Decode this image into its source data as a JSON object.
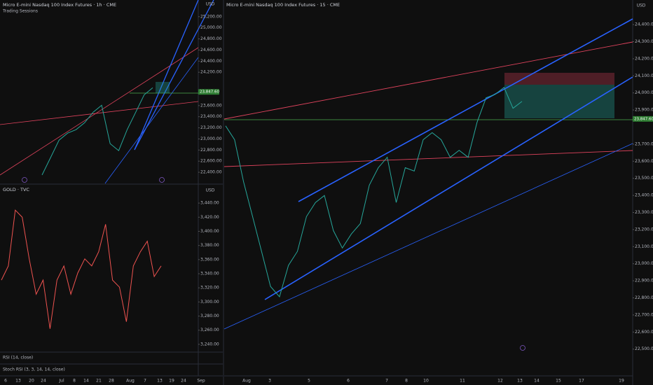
{
  "chart_data": [
    {
      "type": "line",
      "title": "Micro E-mini Nasdaq 100 Index Futures · 1h · CME",
      "subtitle": "Trading Sessions",
      "currency": "USD",
      "color": "#26a69a",
      "grid": false,
      "values": [
        22351,
        22665,
        22979,
        23104,
        23167,
        23292,
        23481,
        23606,
        22916,
        22790,
        23167,
        23481,
        23794,
        23920
      ],
      "ylim": [
        22200,
        25500
      ],
      "yticks": [
        {
          "value": 22400,
          "label": "22,400.00"
        },
        {
          "value": 22600,
          "label": "22,600.00"
        },
        {
          "value": 22800,
          "label": "22,800.00"
        },
        {
          "value": 23000,
          "label": "23,000.00"
        },
        {
          "value": 23200,
          "label": "23,200.00"
        },
        {
          "value": 23400,
          "label": "23,400.00"
        },
        {
          "value": 23600,
          "label": "23,600.00"
        },
        {
          "value": 24200,
          "label": "24,200.00"
        },
        {
          "value": 24400,
          "label": "24,400.00"
        },
        {
          "value": 24600,
          "label": "24,600.00"
        },
        {
          "value": 24800,
          "label": "24,800.00"
        },
        {
          "value": 25000,
          "label": "25,000.00"
        },
        {
          "value": 25200,
          "label": "25,200.00"
        }
      ],
      "price_tag": {
        "value": 23847.6,
        "label": "23,847.60"
      }
    },
    {
      "type": "line",
      "title": "GOLD · TVC",
      "currency": "USD",
      "color": "#ef5350",
      "grid": false,
      "values": [
        3331,
        3351,
        3430,
        3420,
        3361,
        3311,
        3331,
        3262,
        3331,
        3351,
        3311,
        3341,
        3361,
        3351,
        3371,
        3410,
        3331,
        3321,
        3272,
        3351,
        3371,
        3386,
        3336,
        3351
      ],
      "ylim": [
        3230,
        3455
      ],
      "yticks": [
        {
          "value": 3240,
          "label": "3,240.00"
        },
        {
          "value": 3260,
          "label": "3,260.00"
        },
        {
          "value": 3280,
          "label": "3,280.00"
        },
        {
          "value": 3300,
          "label": "3,300.00"
        },
        {
          "value": 3320,
          "label": "3,320.00"
        },
        {
          "value": 3340,
          "label": "3,340.00"
        },
        {
          "value": 3360,
          "label": "3,360.00"
        },
        {
          "value": 3380,
          "label": "3,380.00"
        },
        {
          "value": 3400,
          "label": "3,400.00"
        },
        {
          "value": 3420,
          "label": "3,420.00"
        },
        {
          "value": 3440,
          "label": "3,440.00"
        }
      ],
      "xtick_labels": [
        "6",
        "13",
        "20",
        "24",
        "Jul",
        "8",
        "14",
        "21",
        "28",
        "Aug",
        "7",
        "13",
        "19",
        "24",
        "Sep"
      ]
    },
    {
      "type": "line",
      "title": "Micro E-mini Nasdaq 100 Index Futures · 15 · CME",
      "currency": "USD",
      "color": "#26a69a",
      "grid": false,
      "values": [
        23807,
        23726,
        23480,
        23276,
        23072,
        22867,
        22806,
        22990,
        23072,
        23276,
        23358,
        23399,
        23194,
        23092,
        23174,
        23235,
        23460,
        23562,
        23623,
        23358,
        23562,
        23542,
        23726,
        23767,
        23726,
        23623,
        23664,
        23623,
        23828,
        23971,
        23991,
        24032,
        23910,
        23950
      ],
      "ylim": [
        22380,
        24470
      ],
      "yticks": [
        {
          "value": 22500,
          "label": "22,500.00"
        },
        {
          "value": 22600,
          "label": "22,600.00"
        },
        {
          "value": 22700,
          "label": "22,700.00"
        },
        {
          "value": 22800,
          "label": "22,800.00"
        },
        {
          "value": 22900,
          "label": "22,900.00"
        },
        {
          "value": 23000,
          "label": "23,000.00"
        },
        {
          "value": 23100,
          "label": "23,100.00"
        },
        {
          "value": 23200,
          "label": "23,200.00"
        },
        {
          "value": 23300,
          "label": "23,300.00"
        },
        {
          "value": 23400,
          "label": "23,400.00"
        },
        {
          "value": 23500,
          "label": "23,500.00"
        },
        {
          "value": 23600,
          "label": "23,600.00"
        },
        {
          "value": 23700,
          "label": "23,700.00"
        },
        {
          "value": 23900,
          "label": "23,900.00"
        },
        {
          "value": 24000,
          "label": "24,000.00"
        },
        {
          "value": 24100,
          "label": "24,100.00"
        },
        {
          "value": 24200,
          "label": "24,200.00"
        },
        {
          "value": 24300,
          "label": "24,300.00"
        },
        {
          "value": 24400,
          "label": "24,400.00"
        }
      ],
      "xtick_labels": [
        "Aug",
        "3",
        "5",
        "6",
        "7",
        "8",
        "10",
        "11",
        "12",
        "13",
        "14",
        "15",
        "17",
        "19"
      ],
      "price_tag": {
        "value": 23847.6,
        "label": "23,847.60"
      }
    }
  ],
  "indicators": [
    "RSI (14, close)",
    "Stoch RSI (3, 3, 14, 14, close)"
  ]
}
